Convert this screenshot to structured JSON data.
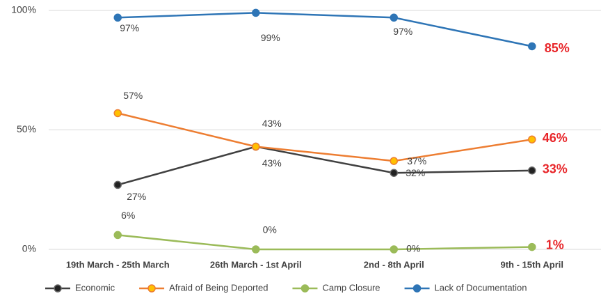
{
  "chart_data": {
    "type": "line",
    "categories": [
      "19th March - 25th March",
      "26th March - 1st April",
      "2nd - 8th April",
      "9th - 15th April"
    ],
    "series": [
      {
        "name": "Economic",
        "color": "#404040",
        "values": [
          27,
          43,
          32,
          33
        ],
        "value_labels": [
          "27%",
          "43%",
          "32%",
          "33%"
        ]
      },
      {
        "name": "Afraid of Being Deported",
        "color": "#ed7d31",
        "values": [
          57,
          43,
          37,
          46
        ],
        "value_labels": [
          "57%",
          "43%",
          "37%",
          "46%"
        ]
      },
      {
        "name": "Camp Closure",
        "color": "#9bbb59",
        "values": [
          6,
          0,
          0,
          1
        ],
        "value_labels": [
          "6%",
          "0%",
          "0%",
          "1%"
        ]
      },
      {
        "name": "Lack of Documentation",
        "color": "#2e75b6",
        "values": [
          97,
          99,
          97,
          85
        ],
        "value_labels": [
          "97%",
          "99%",
          "97%",
          "85%"
        ]
      }
    ],
    "ylim": [
      0,
      100
    ],
    "yticks": [
      {
        "value": 0,
        "label": "0%"
      },
      {
        "value": 50,
        "label": "50%"
      },
      {
        "value": 100,
        "label": "100%"
      }
    ],
    "grid": true,
    "legend": "bottom"
  }
}
